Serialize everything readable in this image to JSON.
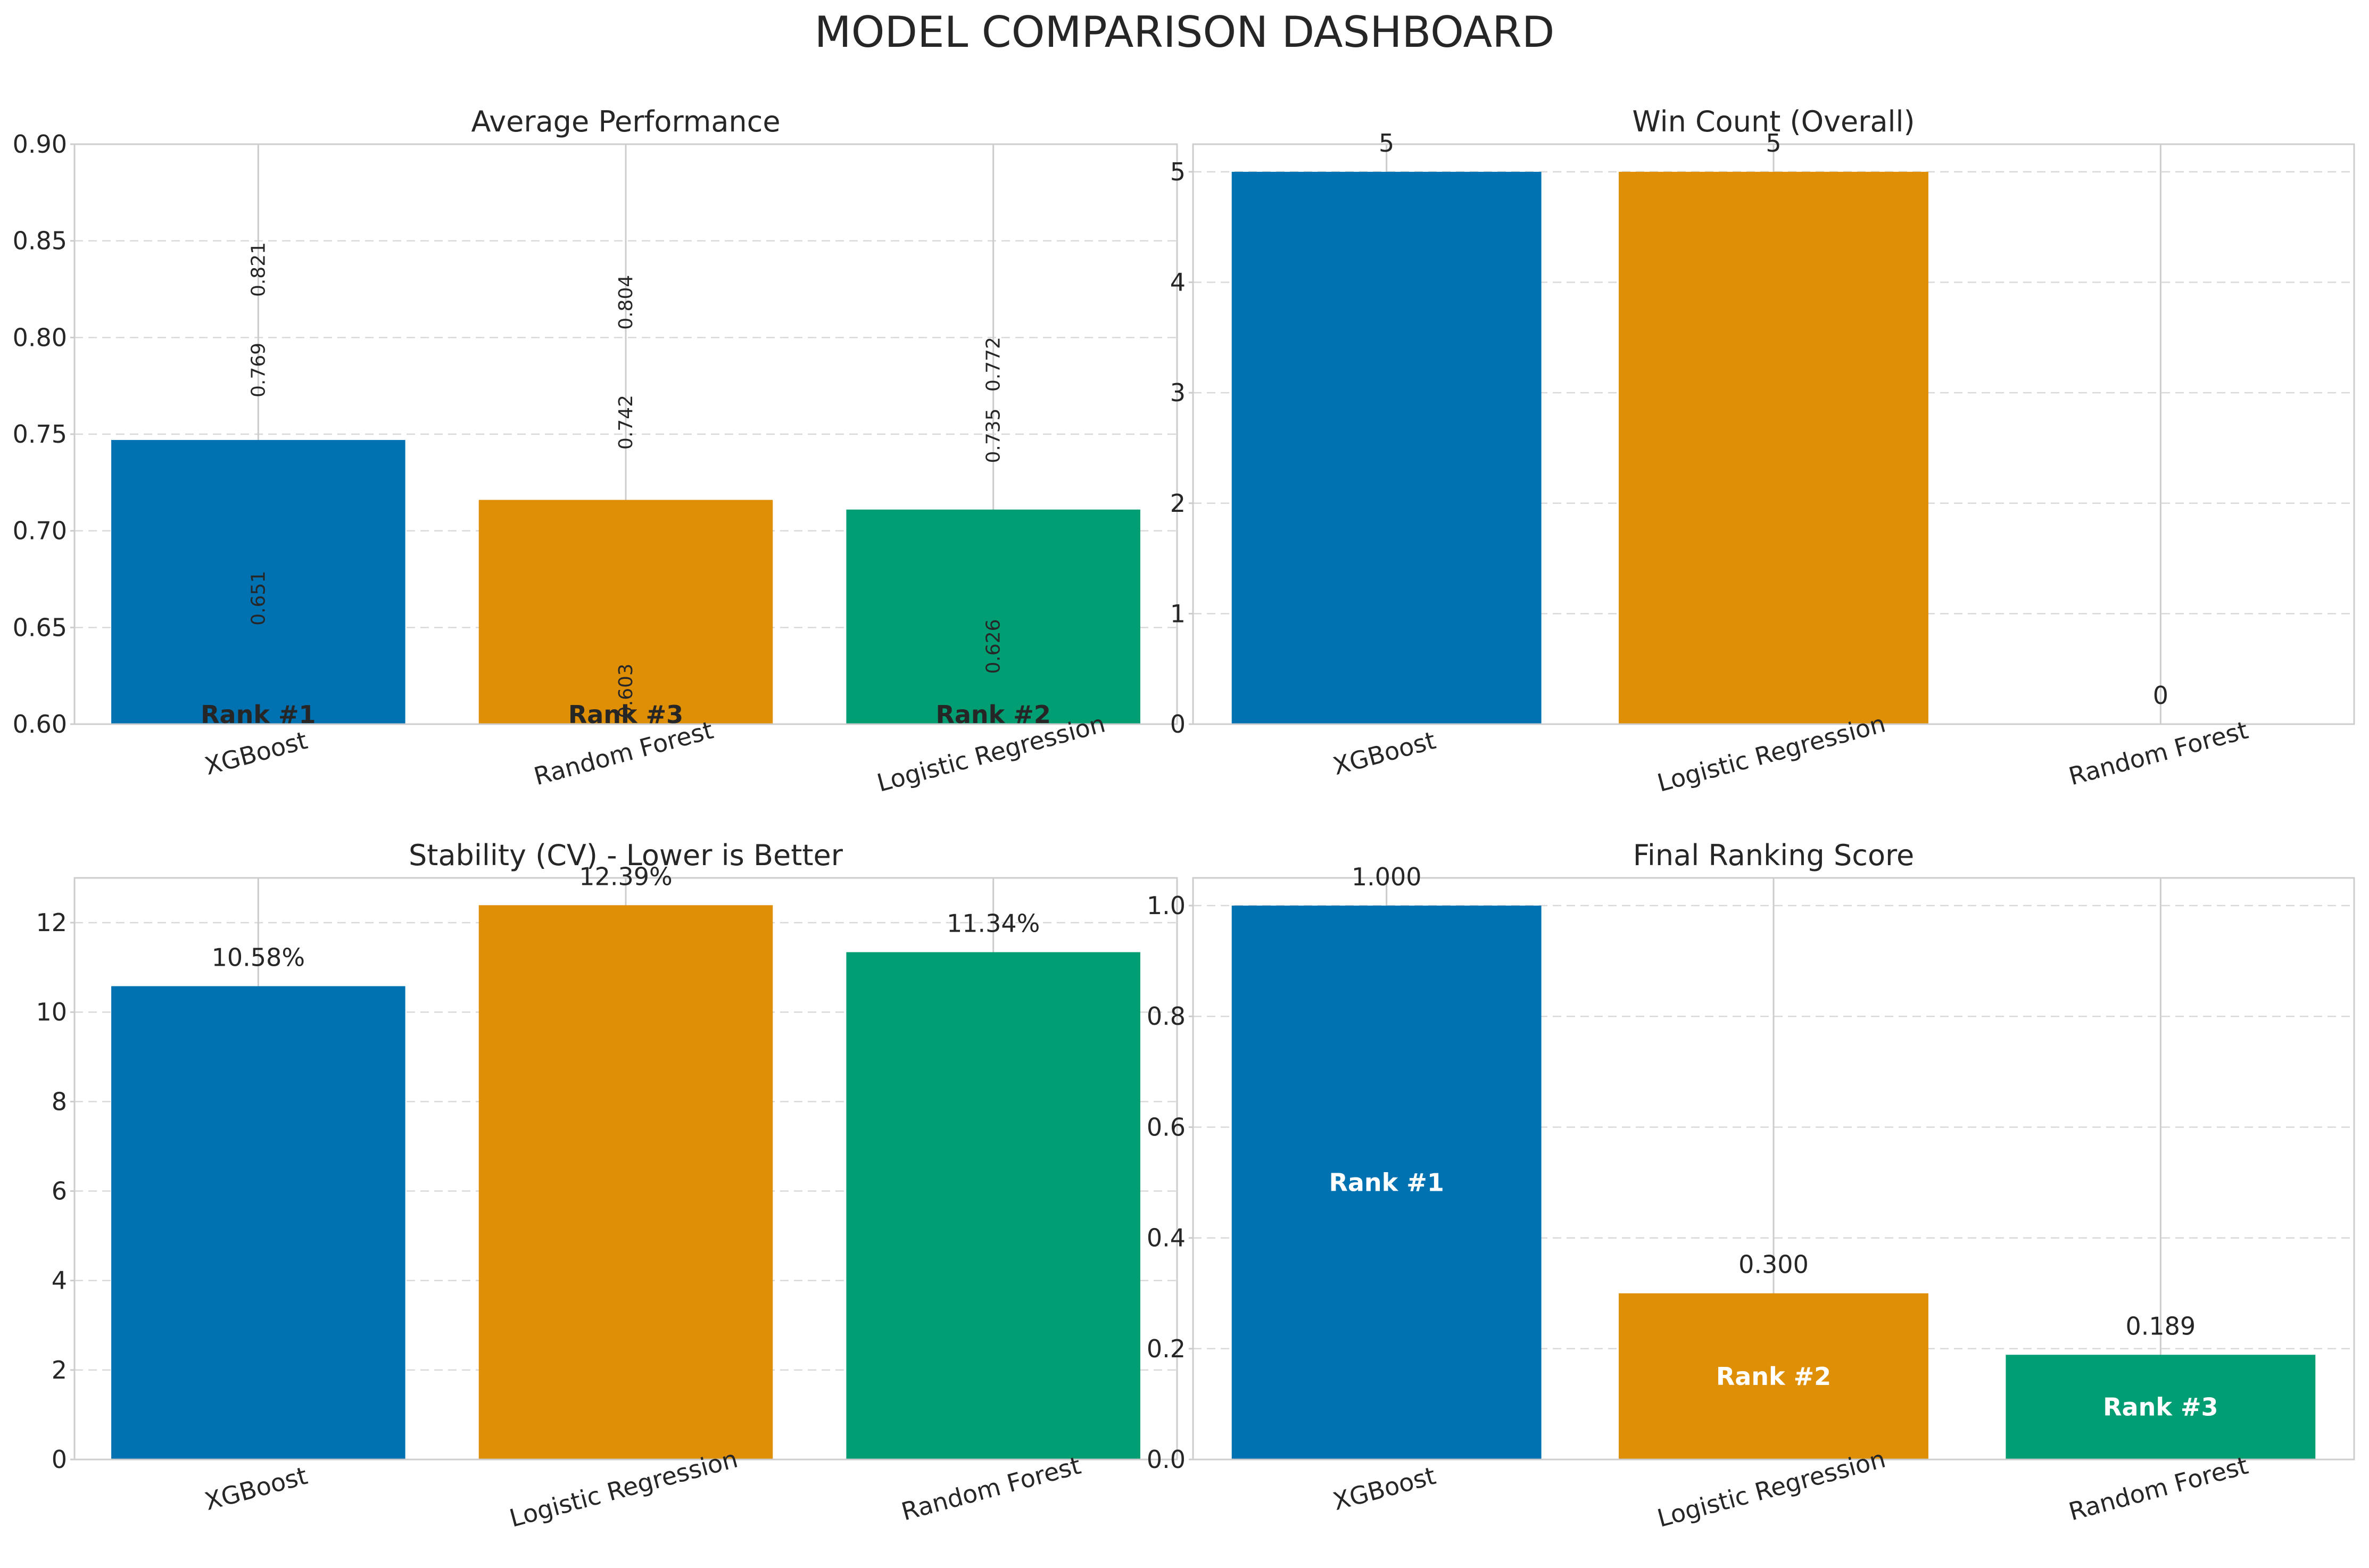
{
  "title": "MODEL COMPARISON DASHBOARD",
  "colors": {
    "blue": "#0072b2",
    "orange": "#de8f05",
    "green": "#029e73",
    "grid": "#d9d9d9",
    "frame": "#cccccc",
    "text": "#262626"
  },
  "chart_data": [
    {
      "id": "avg",
      "type": "bar",
      "title": "Average Performance",
      "categories": [
        "XGBoost",
        "Random Forest",
        "Logistic Regression"
      ],
      "values": [
        0.747,
        0.716,
        0.711
      ],
      "bar_colors": [
        "blue",
        "orange",
        "green"
      ],
      "ylim": [
        0.6,
        0.9
      ],
      "yticks": [
        0.6,
        0.65,
        0.7,
        0.75,
        0.8,
        0.85,
        0.9
      ],
      "ytick_labels": [
        "0.60",
        "0.65",
        "0.70",
        "0.75",
        "0.80",
        "0.85",
        "0.90"
      ],
      "grid": true,
      "point_labels": [
        [
          {
            "value": 0.821,
            "label": "0.821"
          },
          {
            "value": 0.769,
            "label": "0.769"
          },
          {
            "value": 0.651,
            "label": "0.651"
          }
        ],
        [
          {
            "value": 0.804,
            "label": "0.804"
          },
          {
            "value": 0.742,
            "label": "0.742"
          },
          {
            "value": 0.603,
            "label": "0.603"
          }
        ],
        [
          {
            "value": 0.772,
            "label": "0.772"
          },
          {
            "value": 0.735,
            "label": "0.735"
          },
          {
            "value": 0.626,
            "label": "0.626"
          }
        ]
      ],
      "rank_labels": [
        "Rank #1",
        "Rank #3",
        "Rank #2"
      ]
    },
    {
      "id": "wins",
      "type": "bar",
      "title": "Win Count (Overall)",
      "categories": [
        "XGBoost",
        "Logistic Regression",
        "Random Forest"
      ],
      "values": [
        5,
        5,
        0
      ],
      "bar_colors": [
        "blue",
        "orange",
        "green"
      ],
      "ylim": [
        0,
        5.25
      ],
      "yticks": [
        0,
        1,
        2,
        3,
        4,
        5
      ],
      "ytick_labels": [
        "0",
        "1",
        "2",
        "3",
        "4",
        "5"
      ],
      "grid": true,
      "value_labels": [
        "5",
        "5",
        "0"
      ]
    },
    {
      "id": "cv",
      "type": "bar",
      "title": "Stability (CV) - Lower is Better",
      "categories": [
        "XGBoost",
        "Logistic Regression",
        "Random Forest"
      ],
      "values": [
        10.58,
        12.39,
        11.34
      ],
      "bar_colors": [
        "blue",
        "orange",
        "green"
      ],
      "ylim": [
        0,
        13.0
      ],
      "yticks": [
        0,
        2,
        4,
        6,
        8,
        10,
        12
      ],
      "ytick_labels": [
        "0",
        "2",
        "4",
        "6",
        "8",
        "10",
        "12"
      ],
      "grid": true,
      "value_labels": [
        "10.58%",
        "12.39%",
        "11.34%"
      ]
    },
    {
      "id": "final",
      "type": "bar",
      "title": "Final Ranking Score",
      "categories": [
        "XGBoost",
        "Logistic Regression",
        "Random Forest"
      ],
      "values": [
        1.0,
        0.3,
        0.189
      ],
      "bar_colors": [
        "blue",
        "orange",
        "green"
      ],
      "ylim": [
        0,
        1.05
      ],
      "yticks": [
        0,
        0.2,
        0.4,
        0.6,
        0.8,
        1.0
      ],
      "ytick_labels": [
        "0.0",
        "0.2",
        "0.4",
        "0.6",
        "0.8",
        "1.0"
      ],
      "grid": true,
      "value_labels": [
        "1.000",
        "0.300",
        "0.189"
      ],
      "rank_labels": [
        "Rank #1",
        "Rank #2",
        "Rank #3"
      ]
    }
  ]
}
